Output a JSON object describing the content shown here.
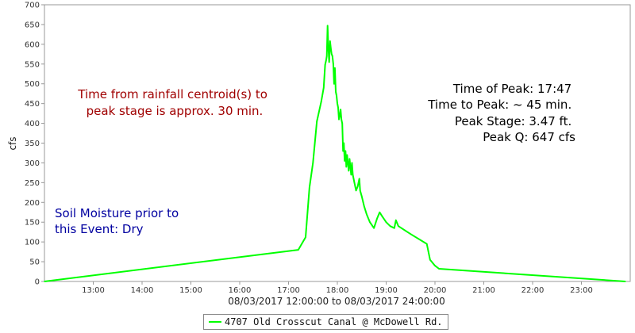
{
  "chart_data": {
    "type": "line",
    "xlabel": "08/03/2017 12:00:00 to 08/03/2017 24:00:00",
    "ylabel": "cfs",
    "ylim": [
      0,
      700
    ],
    "xlim_hours": [
      12.0,
      24.0
    ],
    "y_ticks": [
      0,
      50,
      100,
      150,
      200,
      250,
      300,
      350,
      400,
      450,
      500,
      550,
      600,
      650,
      700
    ],
    "x_tick_hours": [
      13,
      14,
      15,
      16,
      17,
      18,
      19,
      20,
      21,
      22,
      23
    ],
    "x_tick_labels": [
      "13:00",
      "14:00",
      "15:00",
      "16:00",
      "17:00",
      "18:00",
      "19:00",
      "20:00",
      "21:00",
      "22:00",
      "23:00"
    ],
    "grid": false,
    "legend_position": "bottom",
    "series": [
      {
        "name": "4707 Old Crosscut Canal @ McDowell Rd.",
        "color": "#00ff00",
        "x_hours": [
          12.0,
          17.2,
          17.35,
          17.43,
          17.5,
          17.58,
          17.67,
          17.72,
          17.75,
          17.77,
          17.783,
          17.8,
          17.817,
          17.833,
          17.85,
          17.867,
          17.883,
          17.9,
          17.917,
          17.933,
          17.95,
          17.967,
          17.983,
          18.0,
          18.017,
          18.033,
          18.05,
          18.067,
          18.083,
          18.1,
          18.117,
          18.133,
          18.15,
          18.167,
          18.183,
          18.2,
          18.217,
          18.233,
          18.25,
          18.267,
          18.283,
          18.3,
          18.317,
          18.333,
          18.35,
          18.383,
          18.417,
          18.45,
          18.467,
          18.5,
          18.55,
          18.6,
          18.667,
          18.75,
          18.817,
          18.867,
          18.917,
          19.0,
          19.083,
          19.167,
          19.2,
          19.25,
          19.5,
          19.833,
          19.9,
          20.0,
          20.083,
          23.9
        ],
        "values": [
          0,
          80,
          112,
          238,
          300,
          405,
          455,
          490,
          548,
          560,
          570,
          647,
          590,
          555,
          608,
          590,
          575,
          570,
          550,
          500,
          540,
          480,
          470,
          450,
          440,
          410,
          420,
          435,
          410,
          400,
          330,
          350,
          305,
          330,
          290,
          320,
          300,
          280,
          310,
          290,
          270,
          300,
          270,
          260,
          250,
          230,
          240,
          260,
          230,
          215,
          190,
          170,
          150,
          135,
          160,
          175,
          165,
          150,
          140,
          135,
          155,
          140,
          120,
          95,
          55,
          40,
          32,
          0
        ]
      }
    ],
    "annotations": [
      {
        "lines": [
          "Time from rainfall centroid(s) to",
          "peak stage is approx. 30 min."
        ],
        "color": "#a00000",
        "align": "center"
      },
      {
        "lines": [
          "Time of Peak: 17:47",
          "Time to Peak: ~ 45 min.",
          "Peak Stage: 3.47 ft.",
          "Peak Q: 647 cfs"
        ],
        "color": "#000000",
        "align": "right"
      },
      {
        "lines": [
          "Soil Moisture prior to",
          "this Event: Dry"
        ],
        "color": "#0000a0",
        "align": "left"
      }
    ]
  }
}
